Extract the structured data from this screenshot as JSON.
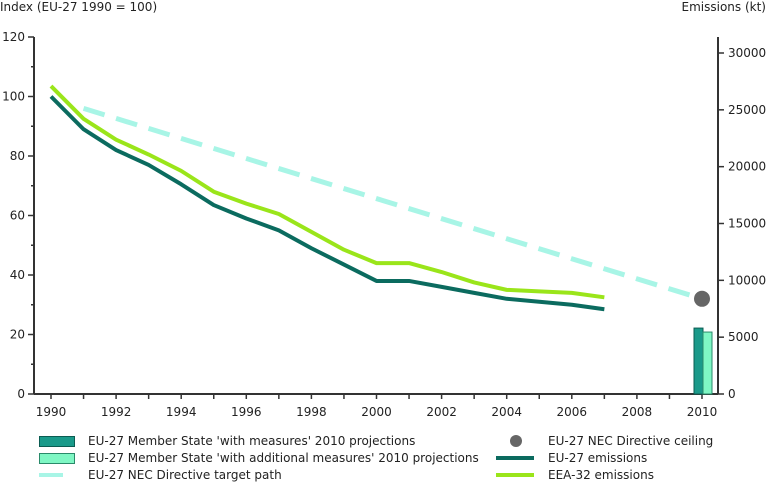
{
  "chart_data": {
    "type": "line",
    "title": "",
    "ylabel": "Index (EU-27 1990 = 100)",
    "y2label": "Emissions (kt)",
    "xlabel": "",
    "xlim": [
      1990,
      2010.6
    ],
    "ylim": [
      0,
      120
    ],
    "y2lim": [
      0,
      30000
    ],
    "x_ticks": [
      1990,
      1992,
      1994,
      1996,
      1998,
      2000,
      2002,
      2004,
      2006,
      2008,
      2010
    ],
    "y_ticks": [
      0,
      20,
      40,
      60,
      80,
      100,
      120
    ],
    "y2_ticks": [
      0,
      5000,
      10000,
      15000,
      20000,
      25000,
      30000
    ],
    "grid": false,
    "legend_position": "bottom",
    "series": [
      {
        "name": "EU-27 NEC Directive target path",
        "kind": "dashed-line",
        "axis": "left",
        "color": "#a8f5e6",
        "x": [
          1991,
          2010
        ],
        "values": [
          96,
          32
        ]
      },
      {
        "name": "EEA-32 emissions",
        "kind": "line",
        "axis": "left",
        "color": "#9ae51a",
        "x": [
          1990,
          1991,
          1992,
          1993,
          1994,
          1995,
          1996,
          1997,
          1998,
          1999,
          2000,
          2001,
          2002,
          2003,
          2004,
          2005,
          2006,
          2007
        ],
        "values": [
          103.5,
          92.5,
          85.5,
          80.5,
          75,
          68,
          64,
          60.5,
          54.5,
          48.5,
          44,
          44,
          41,
          37.5,
          35,
          34.5,
          34,
          32.5
        ]
      },
      {
        "name": "EU-27 emissions",
        "kind": "line",
        "axis": "left",
        "color": "#0b6b5f",
        "x": [
          1990,
          1991,
          1992,
          1993,
          1994,
          1995,
          1996,
          1997,
          1998,
          1999,
          2000,
          2001,
          2002,
          2003,
          2004,
          2005,
          2006,
          2007
        ],
        "values": [
          100,
          89,
          82,
          77,
          70.5,
          63.5,
          59,
          55,
          49,
          43.5,
          38,
          38,
          36,
          34,
          32,
          31,
          30,
          28.5
        ]
      },
      {
        "name": "EU-27 NEC Directive ceiling",
        "kind": "point",
        "axis": "left",
        "color": "#666666",
        "x": [
          2010
        ],
        "values": [
          32
        ]
      },
      {
        "name": "EU-27 Member State 'with measures' 2010 projections",
        "kind": "bar",
        "axis": "right",
        "color": "#1a9a8a",
        "x": [
          2010
        ],
        "values": [
          5800
        ]
      },
      {
        "name": "EU-27 Member State 'with additional measures' 2010 projections",
        "kind": "bar",
        "axis": "right",
        "color": "#7ff7c4",
        "x": [
          2010
        ],
        "values": [
          5450
        ]
      }
    ]
  },
  "legend": {
    "items": [
      {
        "label": "EU-27 Member State 'with measures' 2010 projections",
        "swatch": "bar",
        "color": "#1a9a8a"
      },
      {
        "label": "EU-27 Member State 'with additional measures' 2010 projections",
        "swatch": "bar",
        "color": "#7ff7c4"
      },
      {
        "label": "EU-27 NEC Directive target path",
        "swatch": "line",
        "color": "#a8f5e6"
      },
      {
        "label": "EU-27 NEC Directive ceiling",
        "swatch": "dot",
        "color": "#666666"
      },
      {
        "label": "EU-27 emissions",
        "swatch": "line",
        "color": "#0b6b5f"
      },
      {
        "label": "EEA-32 emissions",
        "swatch": "line",
        "color": "#9ae51a"
      }
    ]
  }
}
